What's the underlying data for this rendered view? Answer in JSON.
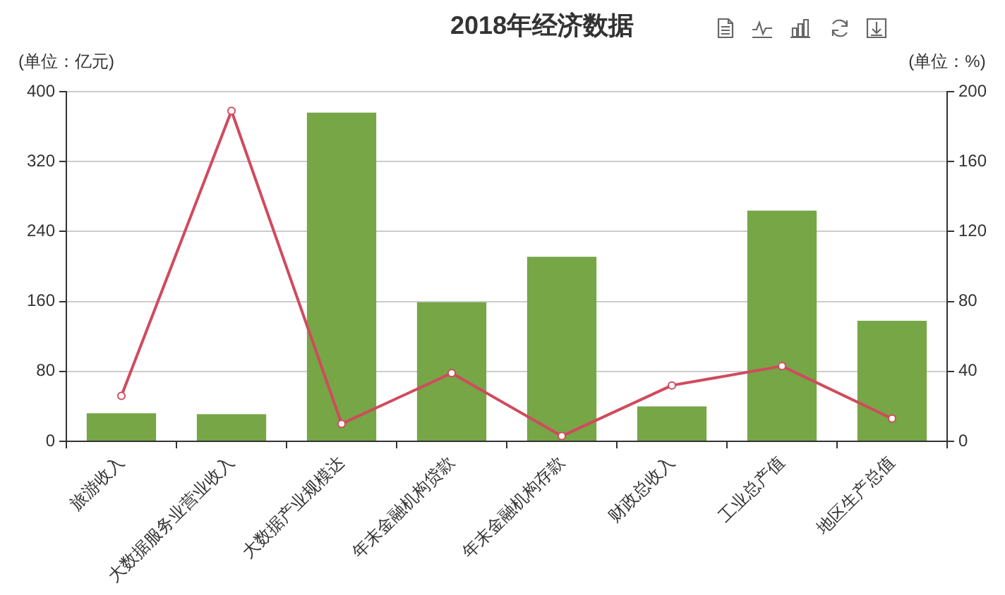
{
  "chart_data": {
    "type": "bar",
    "title": "2018年经济数据",
    "ylabel": "(单位：亿元)",
    "y2label": "(单位：%)",
    "categories": [
      "旅游收入",
      "大数据服务业营业收入",
      "大数据产业规模达",
      "年末金融机构贷款",
      "年末金融机构存款",
      "财政总收入",
      "工业总产值",
      "地区生产总值"
    ],
    "series": [
      {
        "color": "#76a646",
        "values": [
          32,
          31,
          376,
          159,
          211,
          40,
          264,
          138
        ]
      },
      {
        "type": "line",
        "axis": "y2",
        "color": "#d14a5e",
        "values": [
          26,
          189,
          10,
          39,
          3,
          32,
          43,
          13
        ]
      }
    ],
    "ylim": [
      0,
      400
    ],
    "yticks": [
      0,
      80,
      160,
      240,
      320,
      400
    ],
    "y2lim": [
      0,
      200
    ],
    "y2ticks": [
      0,
      40,
      80,
      120,
      160,
      200
    ],
    "grid": "y",
    "legend": false,
    "marker": "circle"
  }
}
